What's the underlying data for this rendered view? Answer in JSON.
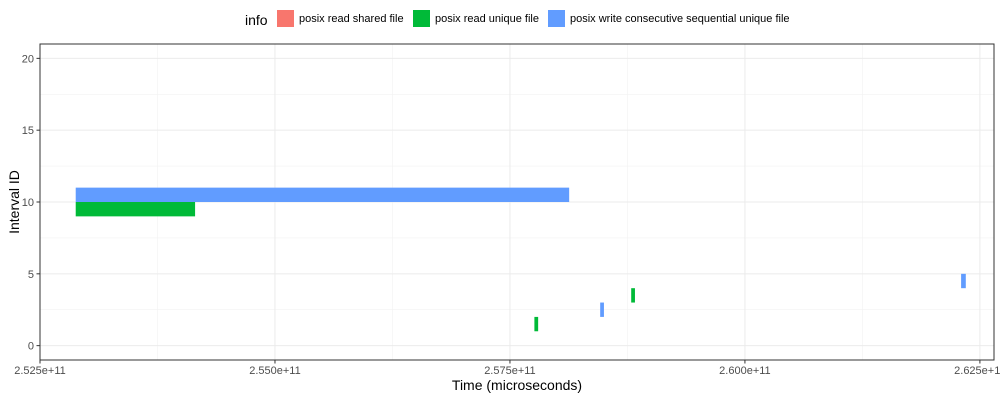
{
  "chart_data": {
    "type": "interval",
    "xlabel": "Time (microseconds)",
    "ylabel": "Interval ID",
    "xlim": [
      252500000000,
      262650000000
    ],
    "ylim": [
      -1,
      21
    ],
    "x_ticks": [
      252500000000,
      255000000000,
      257500000000,
      260000000000,
      262500000000
    ],
    "x_tick_labels": [
      "2.525e+11",
      "2.550e+11",
      "2.575e+11",
      "2.600e+11",
      "2.625e+11"
    ],
    "y_ticks": [
      0,
      5,
      10,
      15,
      20
    ],
    "y_tick_labels": [
      "0",
      "5",
      "10",
      "15",
      "20"
    ],
    "grid": true,
    "legend_position": "top",
    "legend": {
      "title": "info",
      "entries": [
        {
          "name": "posix read shared file",
          "color": "#F8766D"
        },
        {
          "name": "posix read unique file",
          "color": "#00BA38"
        },
        {
          "name": "posix write consecutive sequential unique file",
          "color": "#619CFF"
        }
      ]
    },
    "intervals": [
      {
        "series": "posix write consecutive sequential unique file",
        "id": 10,
        "start": 252880000000,
        "end": 258130000000
      },
      {
        "series": "posix read unique file",
        "id": 9,
        "start": 252880000000,
        "end": 254150000000
      },
      {
        "series": "posix read unique file",
        "id": 1,
        "start": 257760000000,
        "end": 257800000000
      },
      {
        "series": "posix write consecutive sequential unique file",
        "id": 2,
        "start": 258460000000,
        "end": 258500000000
      },
      {
        "series": "posix read unique file",
        "id": 3,
        "start": 258790000000,
        "end": 258830000000
      },
      {
        "series": "posix write consecutive sequential unique file",
        "id": 4,
        "start": 262300000000,
        "end": 262350000000
      }
    ]
  }
}
